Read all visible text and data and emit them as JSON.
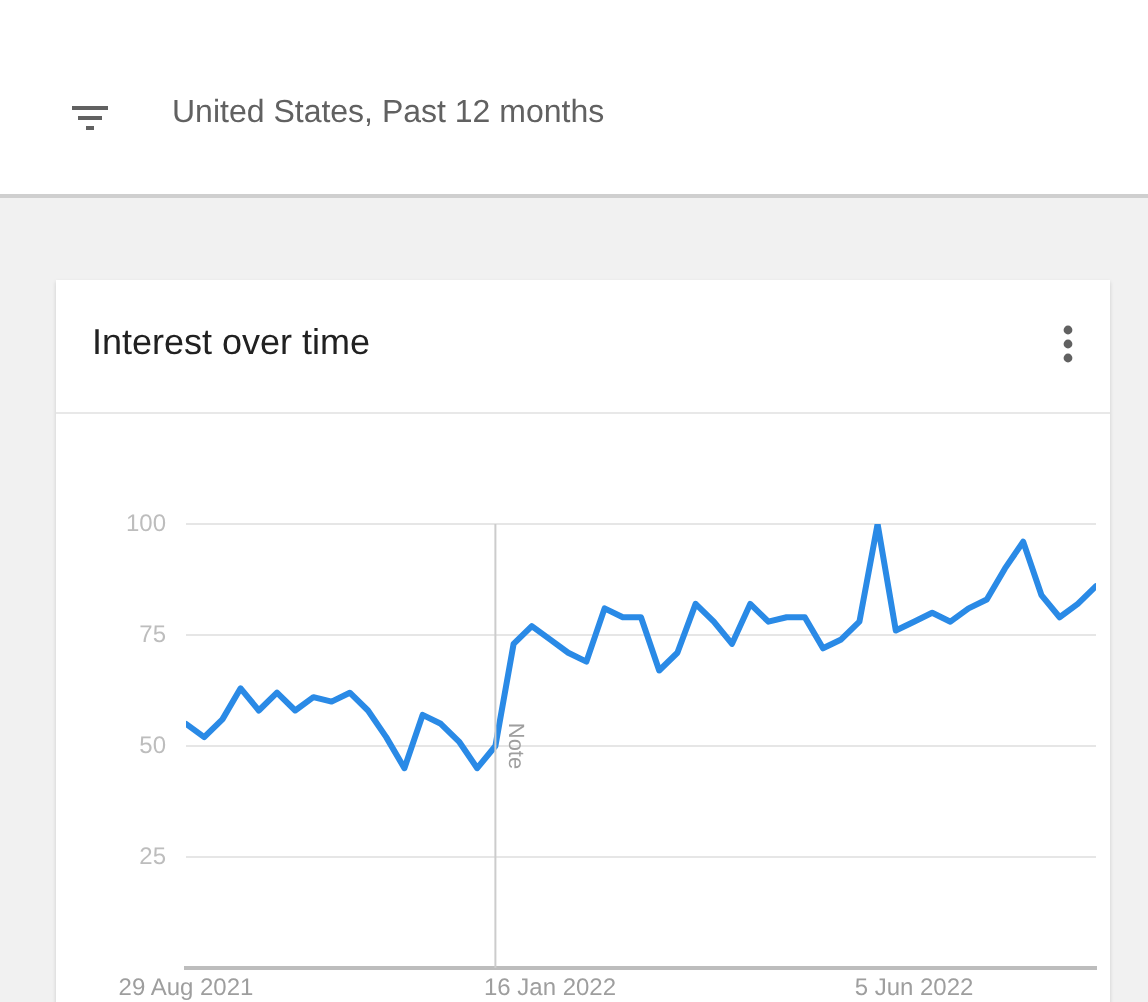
{
  "chart_data": {
    "type": "line",
    "title": "Interest over time",
    "subtitle": "United States, Past 12 months",
    "x": [
      "2021-08-29",
      "2021-09-05",
      "2021-09-12",
      "2021-09-19",
      "2021-09-26",
      "2021-10-03",
      "2021-10-10",
      "2021-10-17",
      "2021-10-24",
      "2021-10-31",
      "2021-11-07",
      "2021-11-14",
      "2021-11-21",
      "2021-11-28",
      "2021-12-05",
      "2021-12-12",
      "2021-12-19",
      "2021-12-26",
      "2022-01-02",
      "2022-01-09",
      "2022-01-16",
      "2022-01-23",
      "2022-01-30",
      "2022-02-06",
      "2022-02-13",
      "2022-02-20",
      "2022-02-27",
      "2022-03-06",
      "2022-03-13",
      "2022-03-20",
      "2022-03-27",
      "2022-04-03",
      "2022-04-10",
      "2022-04-17",
      "2022-04-24",
      "2022-05-01",
      "2022-05-08",
      "2022-05-15",
      "2022-05-22",
      "2022-05-29",
      "2022-06-05",
      "2022-06-12",
      "2022-06-19",
      "2022-06-26",
      "2022-07-03",
      "2022-07-10",
      "2022-07-17",
      "2022-07-24",
      "2022-07-31",
      "2022-08-07",
      "2022-08-14"
    ],
    "series": [
      {
        "color": "#2a8ae6",
        "values": [
          55,
          52,
          56,
          63,
          58,
          62,
          58,
          61,
          60,
          62,
          58,
          52,
          45,
          57,
          55,
          51,
          45,
          50,
          73,
          77,
          74,
          71,
          69,
          81,
          79,
          79,
          67,
          71,
          82,
          78,
          73,
          82,
          78,
          79,
          79,
          72,
          74,
          78,
          100,
          76,
          78,
          80,
          78,
          81,
          83,
          90,
          96,
          84,
          79,
          82,
          86
        ]
      }
    ],
    "xlim": [
      "2021-08-29",
      "2022-08-14"
    ],
    "xticks": [
      {
        "value": "2021-08-29",
        "label": "29 Aug 2021"
      },
      {
        "value": "2022-01-16",
        "label": "16 Jan 2022"
      },
      {
        "value": "2022-06-05",
        "label": "5 Jun 2022"
      }
    ],
    "ylim": [
      0,
      100
    ],
    "yticks": [
      {
        "value": 0,
        "label": null
      },
      25,
      50,
      75,
      100
    ],
    "ref_lines": [
      {
        "axis": "x",
        "value": "2021-12-26",
        "label": "Note",
        "color": "#cccccc"
      }
    ],
    "grid": "y",
    "legend": false,
    "marker": "none",
    "line_style": "solid"
  }
}
